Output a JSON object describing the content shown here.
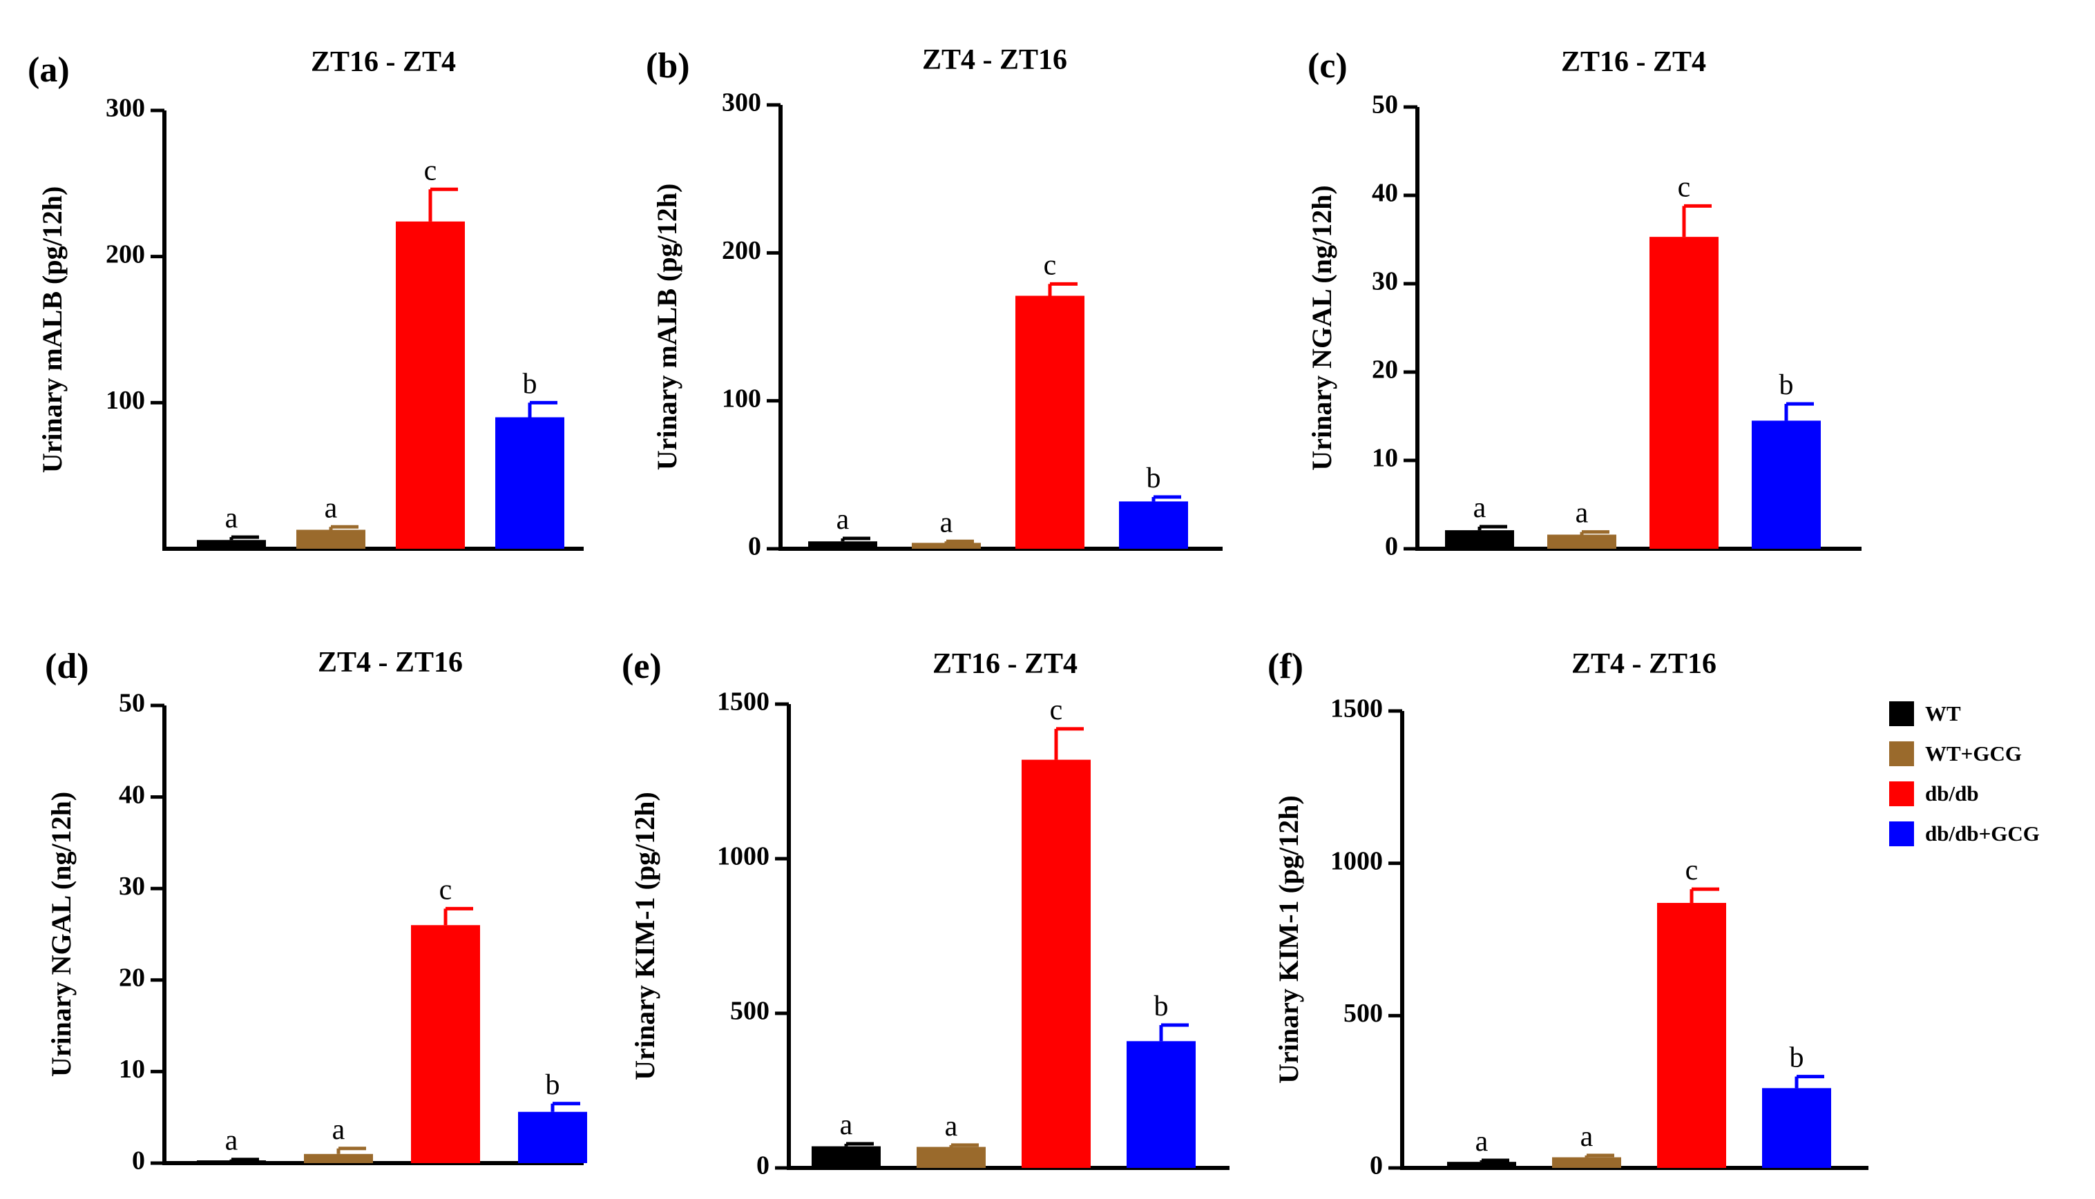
{
  "figure": {
    "groups": [
      "WT",
      "WT+GCG",
      "db/db",
      "db/db+GCG"
    ]
  },
  "legend": {
    "items": [
      {
        "label": "WT",
        "color": "#000000"
      },
      {
        "label": "WT+GCG",
        "color": "#9a6a2c"
      },
      {
        "label": "db/db",
        "color": "#ff0000"
      },
      {
        "label": "db/db+GCG",
        "color": "#0000ff"
      }
    ]
  },
  "chart_data": [
    {
      "type": "bar",
      "panel_label": "(a)",
      "title": "ZT16 - ZT4",
      "ylabel": "Urinary mALB (pg/12h)",
      "xlabel": "",
      "categories": [
        "WT",
        "WT+GCG",
        "db/db",
        "db/db+GCG"
      ],
      "values": [
        6,
        13,
        224,
        90
      ],
      "errors": [
        2,
        2,
        22,
        10
      ],
      "significance": [
        "a",
        "a",
        "c",
        "b"
      ],
      "ylim": [
        0,
        300
      ],
      "yticks": [
        100,
        200,
        300
      ],
      "ytick_labels": [
        "100",
        "200",
        "300"
      ]
    },
    {
      "type": "bar",
      "panel_label": "(b)",
      "title": "ZT4 - ZT16",
      "ylabel": "Urinary mALB (pg/12h)",
      "xlabel": "",
      "categories": [
        "WT",
        "WT+GCG",
        "db/db",
        "db/db+GCG"
      ],
      "values": [
        5,
        4,
        171,
        32
      ],
      "errors": [
        2,
        1,
        8,
        3
      ],
      "significance": [
        "a",
        "a",
        "c",
        "b"
      ],
      "ylim": [
        0,
        300
      ],
      "yticks": [
        0,
        100,
        200,
        300
      ],
      "ytick_labels": [
        "0",
        "100",
        "200",
        "300"
      ]
    },
    {
      "type": "bar",
      "panel_label": "(c)",
      "title": "ZT16 - ZT4",
      "ylabel": "Urinary NGAL (ng/12h)",
      "xlabel": "",
      "categories": [
        "WT",
        "WT+GCG",
        "db/db",
        "db/db+GCG"
      ],
      "values": [
        2.1,
        1.6,
        35.3,
        14.5
      ],
      "errors": [
        0.4,
        0.3,
        3.5,
        1.9
      ],
      "significance": [
        "a",
        "a",
        "c",
        "b"
      ],
      "ylim": [
        0,
        50
      ],
      "yticks": [
        0,
        10,
        20,
        30,
        40,
        50
      ],
      "ytick_labels": [
        "0",
        "10",
        "20",
        "30",
        "40",
        "50"
      ]
    },
    {
      "type": "bar",
      "panel_label": "(d)",
      "title": "ZT4 - ZT16",
      "ylabel": "Urinary NGAL (ng/12h)",
      "xlabel": "",
      "categories": [
        "WT",
        "WT+GCG",
        "db/db",
        "db/db+GCG"
      ],
      "values": [
        0.3,
        1.0,
        26.0,
        5.6
      ],
      "errors": [
        0.1,
        0.6,
        1.8,
        0.9
      ],
      "significance": [
        "a",
        "a",
        "c",
        "b"
      ],
      "ylim": [
        0,
        50
      ],
      "yticks": [
        0,
        10,
        20,
        30,
        40,
        50
      ],
      "ytick_labels": [
        "0",
        "10",
        "20",
        "30",
        "40",
        "50"
      ]
    },
    {
      "type": "bar",
      "panel_label": "(e)",
      "title": "ZT16 - ZT4",
      "ylabel": "Urinary KIM-1 (pg/12h)",
      "xlabel": "",
      "categories": [
        "WT",
        "WT+GCG",
        "db/db",
        "db/db+GCG"
      ],
      "values": [
        70,
        68,
        1320,
        410
      ],
      "errors": [
        8,
        6,
        100,
        52
      ],
      "significance": [
        "a",
        "a",
        "c",
        "b"
      ],
      "ylim": [
        0,
        1500
      ],
      "yticks": [
        0,
        500,
        1000,
        1500
      ],
      "ytick_labels": [
        "0",
        "500",
        "1000",
        "1500"
      ]
    },
    {
      "type": "bar",
      "panel_label": "(f)",
      "title": "ZT4 - ZT16",
      "ylabel": "Urinary KIM-1 (pg/12h)",
      "xlabel": "",
      "categories": [
        "WT",
        "WT+GCG",
        "db/db",
        "db/db+GCG"
      ],
      "values": [
        20,
        35,
        870,
        262
      ],
      "errors": [
        5,
        6,
        45,
        38
      ],
      "significance": [
        "a",
        "a",
        "c",
        "b"
      ],
      "ylim": [
        0,
        1500
      ],
      "yticks": [
        0,
        500,
        1000,
        1500
      ],
      "ytick_labels": [
        "0",
        "500",
        "1000",
        "1500"
      ]
    }
  ]
}
